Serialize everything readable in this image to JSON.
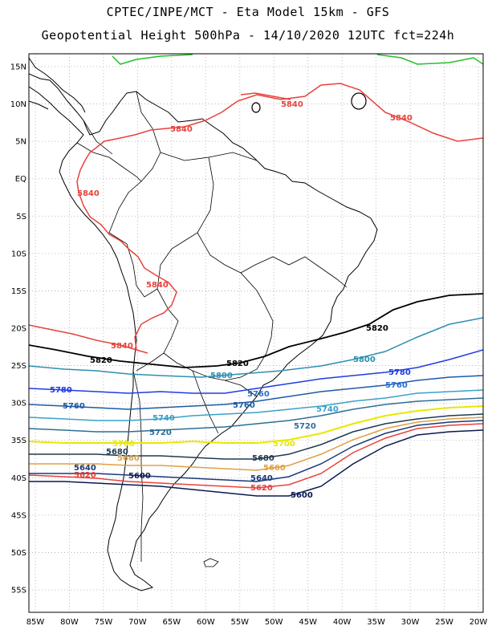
{
  "titles": {
    "line1": "CPTEC/INPE/MCT -  Eta Model 15km - GFS",
    "line2": "Geopotential Height 500hPa - 14/10/2020 12UTC fct=224h"
  },
  "axes": {
    "lat_labels": [
      "15N",
      "10N",
      "5N",
      "EQ",
      "5S",
      "10S",
      "15S",
      "20S",
      "25S",
      "30S",
      "35S",
      "40S",
      "45S",
      "50S",
      "55S"
    ],
    "lon_labels": [
      "85W",
      "80W",
      "75W",
      "70W",
      "65W",
      "60W",
      "55W",
      "50W",
      "45W",
      "40W",
      "35W",
      "30W",
      "25W",
      "20W"
    ],
    "lat_range": [
      -58,
      17
    ],
    "lon_range": [
      -86,
      -20
    ],
    "grid": "dotted"
  },
  "contours": [
    {
      "value": "5840",
      "color": "#e8423c"
    },
    {
      "value": "5840",
      "color": "#e8423c"
    },
    {
      "value": "5840",
      "color": "#e8423c"
    },
    {
      "value": "5840",
      "color": "#e8423c"
    },
    {
      "value": "5840",
      "color": "#e8423c"
    },
    {
      "value": "5840",
      "color": "#e8423c"
    },
    {
      "value": "5820",
      "color": "#000000"
    },
    {
      "value": "5820",
      "color": "#000000"
    },
    {
      "value": "5820",
      "color": "#000000"
    },
    {
      "value": "5800",
      "color": "#2d8fb2"
    },
    {
      "value": "5800",
      "color": "#2d8fb2"
    },
    {
      "value": "5780",
      "color": "#1e3de0"
    },
    {
      "value": "5780",
      "color": "#1e3de0"
    },
    {
      "value": "5760",
      "color": "#2a6fd0"
    },
    {
      "value": "5760",
      "color": "#1d5aa5"
    },
    {
      "value": "5760",
      "color": "#1d5aa5"
    },
    {
      "value": "5760",
      "color": "#2a6fd0"
    },
    {
      "value": "5740",
      "color": "#3aa0c8"
    },
    {
      "value": "5740",
      "color": "#3aa0c8"
    },
    {
      "value": "5720",
      "color": "#2b6f98"
    },
    {
      "value": "5720",
      "color": "#2b6f98"
    },
    {
      "value": "5700",
      "color": "#e8e800"
    },
    {
      "value": "5700",
      "color": "#e8e800"
    },
    {
      "value": "5680",
      "color": "#1f3a52"
    },
    {
      "value": "5680",
      "color": "#1f3a52"
    },
    {
      "value": "5660",
      "color": "#e0a040"
    },
    {
      "value": "5660",
      "color": "#e0a040"
    },
    {
      "value": "5640",
      "color": "#1a3a78"
    },
    {
      "value": "5640",
      "color": "#1a3a78"
    },
    {
      "value": "5620",
      "color": "#e8423c"
    },
    {
      "value": "5620",
      "color": "#e8423c"
    },
    {
      "value": "5600",
      "color": "#0a1a50"
    },
    {
      "value": "5600",
      "color": "#0a1a50"
    }
  ],
  "colors": {
    "green_contour": "#22c02a",
    "land_outline": "#000000",
    "grid": "#aaaaaa"
  }
}
